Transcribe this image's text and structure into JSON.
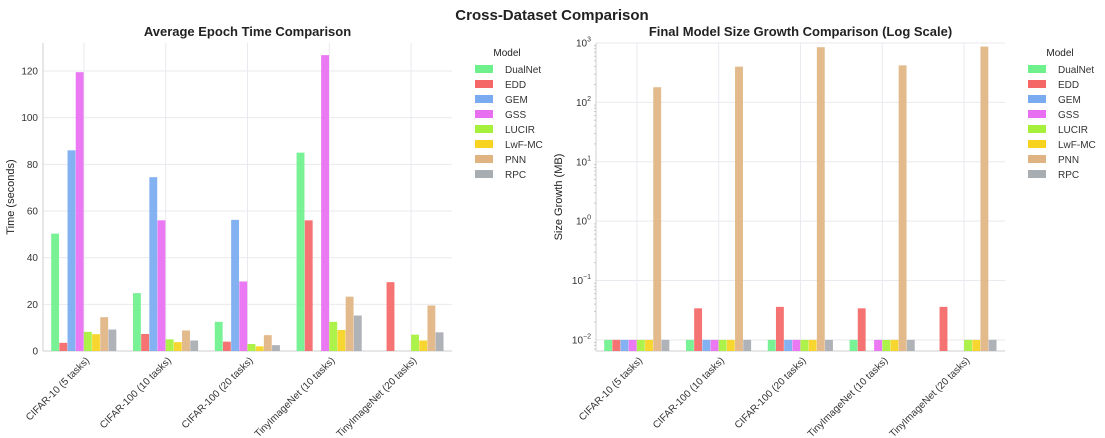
{
  "figure": {
    "title": "Cross-Dataset Comparison"
  },
  "colors": {
    "DualNet": "#6ef08c",
    "EDD": "#f56767",
    "GEM": "#7aaaf0",
    "GSS": "#e86ef2",
    "LUCIR": "#a6f03c",
    "LwF-MC": "#f7d21e",
    "PNN": "#e0b482",
    "RPC": "#a8adb2"
  },
  "chart_data": [
    {
      "type": "bar",
      "title": "Average Epoch Time Comparison",
      "xlabel": "",
      "ylabel": "Time (seconds)",
      "ylim": [
        0,
        132
      ],
      "yticks": [
        0,
        20,
        40,
        60,
        80,
        100,
        120
      ],
      "scale": "linear",
      "legend": {
        "title": "Model",
        "placement": "outside-right"
      },
      "categories": [
        "CIFAR-10 (5 tasks)",
        "CIFAR-100 (10 tasks)",
        "CIFAR-100 (20 tasks)",
        "TinyImageNet (10 tasks)",
        "TinyImageNet (20 tasks)"
      ],
      "series": [
        {
          "name": "DualNet",
          "values": [
            50.3,
            24.8,
            12.5,
            85.0,
            null
          ]
        },
        {
          "name": "EDD",
          "values": [
            3.5,
            7.3,
            4.0,
            56.0,
            29.5
          ]
        },
        {
          "name": "GEM",
          "values": [
            86.0,
            74.5,
            56.2,
            null,
            null
          ]
        },
        {
          "name": "GSS",
          "values": [
            119.5,
            56.0,
            29.8,
            126.8,
            null
          ]
        },
        {
          "name": "LUCIR",
          "values": [
            8.2,
            5.0,
            3.0,
            12.5,
            7.0
          ]
        },
        {
          "name": "LwF-MC",
          "values": [
            7.2,
            3.8,
            2.0,
            9.0,
            4.5
          ]
        },
        {
          "name": "PNN",
          "values": [
            14.5,
            8.8,
            6.8,
            23.3,
            19.5
          ]
        },
        {
          "name": "RPC",
          "values": [
            9.2,
            4.5,
            2.5,
            15.2,
            8.0
          ]
        }
      ]
    },
    {
      "type": "bar",
      "title": "Final Model Size Growth Comparison (Log Scale)",
      "xlabel": "",
      "ylabel": "Size Growth (MB)",
      "ylim": [
        0.0065,
        1000
      ],
      "scale": "log",
      "yticks": [
        {
          "value": 0.01,
          "base": "10",
          "exp": "−2"
        },
        {
          "value": 0.1,
          "base": "10",
          "exp": "−1"
        },
        {
          "value": 1,
          "base": "10",
          "exp": "0"
        },
        {
          "value": 10,
          "base": "10",
          "exp": "1"
        },
        {
          "value": 100,
          "base": "10",
          "exp": "2"
        },
        {
          "value": 1000,
          "base": "10",
          "exp": "3"
        }
      ],
      "legend": {
        "title": "Model",
        "placement": "outside-right"
      },
      "categories": [
        "CIFAR-10 (5 tasks)",
        "CIFAR-100 (10 tasks)",
        "CIFAR-100 (20 tasks)",
        "TinyImageNet (10 tasks)",
        "TinyImageNet (20 tasks)"
      ],
      "series": [
        {
          "name": "DualNet",
          "values": [
            0.01,
            0.01,
            0.01,
            0.01,
            null
          ]
        },
        {
          "name": "EDD",
          "values": [
            0.01,
            0.034,
            0.036,
            0.034,
            0.036
          ]
        },
        {
          "name": "GEM",
          "values": [
            0.01,
            0.01,
            0.01,
            null,
            null
          ]
        },
        {
          "name": "GSS",
          "values": [
            0.01,
            0.01,
            0.01,
            0.01,
            null
          ]
        },
        {
          "name": "LUCIR",
          "values": [
            0.01,
            0.01,
            0.01,
            0.01,
            0.01
          ]
        },
        {
          "name": "LwF-MC",
          "values": [
            0.01,
            0.01,
            0.01,
            0.01,
            0.01
          ]
        },
        {
          "name": "PNN",
          "values": [
            180,
            400,
            850,
            420,
            870
          ]
        },
        {
          "name": "RPC",
          "values": [
            0.01,
            0.01,
            0.01,
            0.01,
            0.01
          ]
        }
      ]
    }
  ]
}
